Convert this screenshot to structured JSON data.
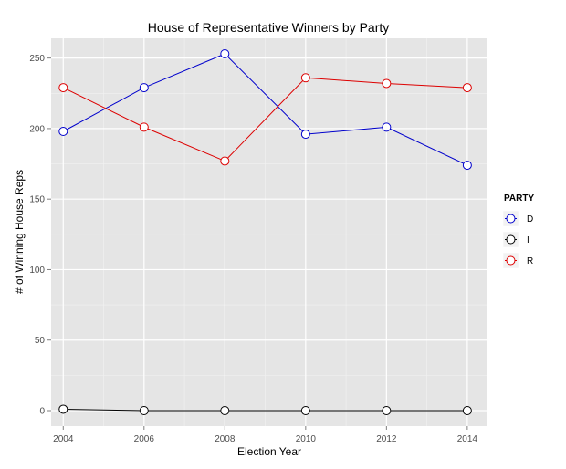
{
  "chart_data": {
    "type": "line",
    "title": "House of Representative Winners by Party",
    "xlabel": "Election Year",
    "ylabel": "# of Winning House Reps",
    "x": [
      2004,
      2006,
      2008,
      2010,
      2012,
      2014
    ],
    "x_ticks": [
      "2004",
      "2006",
      "2008",
      "2010",
      "2012",
      "2014"
    ],
    "y_ticks": [
      "0",
      "50",
      "100",
      "150",
      "200",
      "250"
    ],
    "xlim": [
      2003.7,
      2014.5
    ],
    "ylim": [
      -11,
      264
    ],
    "grid": true,
    "legend": {
      "title": "PARTY",
      "position": "right"
    },
    "series": [
      {
        "name": "D",
        "color": "#0000cc",
        "values": [
          198,
          229,
          253,
          196,
          201,
          174
        ]
      },
      {
        "name": "I",
        "color": "#000000",
        "values": [
          1,
          0,
          0,
          0,
          0,
          0
        ]
      },
      {
        "name": "R",
        "color": "#dd0000",
        "values": [
          229,
          201,
          177,
          236,
          232,
          229
        ]
      }
    ]
  }
}
